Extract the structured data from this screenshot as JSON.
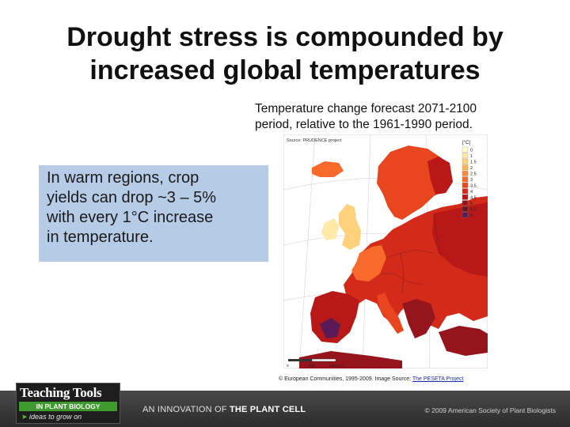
{
  "slide": {
    "title_lines": [
      "Drought stress is compounded by",
      "increased global temperatures"
    ],
    "caption_lines": [
      "Temperature change forecast 2071-2100",
      "period, relative to the 1961-1990 period."
    ],
    "callout_lines": [
      "In warm regions, crop",
      "yields can drop ~3 – 5%",
      "with every 1°C increase",
      "in temperature."
    ]
  },
  "map": {
    "source_label": "Source: PRUDENCE project",
    "unit_label": "[°C]",
    "legend": [
      {
        "label": "0",
        "color": "#ffffcc"
      },
      {
        "label": "1",
        "color": "#ffe9a8"
      },
      {
        "label": "1.5",
        "color": "#fed17a"
      },
      {
        "label": "2",
        "color": "#fdb35a"
      },
      {
        "label": "2.5",
        "color": "#fc8c3c"
      },
      {
        "label": "3",
        "color": "#f76a2b"
      },
      {
        "label": "3.5",
        "color": "#e8461f"
      },
      {
        "label": "4",
        "color": "#d42a1a"
      },
      {
        "label": "4.5",
        "color": "#b81818"
      },
      {
        "label": "5",
        "color": "#96141c"
      },
      {
        "label": "5.5",
        "color": "#6f1420"
      },
      {
        "label": "6",
        "color": "#5a1a55"
      }
    ],
    "scale_labels": [
      "0",
      "500",
      "1000 km"
    ],
    "colors": {
      "sea": "#ffffff",
      "graticule": "#c8c8c8",
      "border": "#5a1a1a"
    }
  },
  "credit": {
    "text": "© European Communities, 1995-2009. Image Source: ",
    "link": "The PESETA Project"
  },
  "footer": {
    "logo_line1": "Teaching Tools",
    "logo_line2": "IN PLANT BIOLOGY",
    "logo_line3": "ideas to grow on",
    "innovation_prefix": "AN INNOVATION OF ",
    "innovation_bold": "THE PLANT CELL",
    "copyright": "© 2009 American Society of Plant Biologists"
  }
}
